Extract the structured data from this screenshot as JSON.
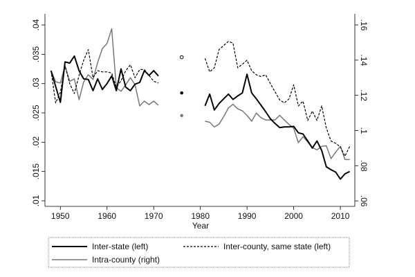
{
  "chart_data": {
    "type": "line",
    "xlabel": "Year",
    "ylabel_left": "",
    "ylabel_right": "",
    "xlim": [
      1946.7,
      2013.1
    ],
    "ylim_left": [
      0.00905,
      0.0419
    ],
    "ylim_right": [
      0.0569,
      0.1663
    ],
    "x_ticks": [
      1950,
      1960,
      1970,
      1980,
      1990,
      2000,
      2010
    ],
    "y_ticks_left": [
      ".01",
      ".015",
      ".02",
      ".025",
      ".03",
      ".035",
      ".04"
    ],
    "y_ticks_left_values": [
      0.01,
      0.015,
      0.02,
      0.025,
      0.03,
      0.035,
      0.04
    ],
    "y_ticks_right": [
      ".06",
      ".08",
      ".1",
      ".12",
      ".14",
      ".16"
    ],
    "y_ticks_right_values": [
      0.06,
      0.08,
      0.1,
      0.12,
      0.14,
      0.16
    ],
    "grid": false,
    "legend_placement": "bottom",
    "series": [
      {
        "name": "Inter-state (left)",
        "axis": "left",
        "style": "solid",
        "color": "#000000",
        "segments": [
          {
            "x": [
              1948,
              1949,
              1950,
              1951,
              1952,
              1953,
              1954,
              1955,
              1956,
              1957,
              1958,
              1959,
              1960,
              1961,
              1962,
              1963,
              1964,
              1965,
              1966,
              1967,
              1968,
              1969,
              1970,
              1971
            ],
            "y": [
              0.0322,
              0.0295,
              0.0268,
              0.0337,
              0.0335,
              0.0347,
              0.0322,
              0.0308,
              0.0307,
              0.0288,
              0.0308,
              0.029,
              0.03,
              0.0313,
              0.0288,
              0.0325,
              0.0294,
              0.0288,
              0.0299,
              0.0302,
              0.0322,
              0.0314,
              0.0322,
              0.0313
            ]
          },
          {
            "x": [
              1981,
              1982,
              1983,
              1984,
              1985,
              1986,
              1987,
              1988,
              1989,
              1990,
              1991,
              1992,
              1993,
              1994,
              1995,
              1996,
              1997,
              1998,
              1999,
              2000,
              2001,
              2002,
              2003,
              2004,
              2005,
              2006,
              2007,
              2008,
              2009,
              2010,
              2011,
              2012
            ],
            "y": [
              0.0262,
              0.0282,
              0.0255,
              0.0266,
              0.0274,
              0.0282,
              0.0273,
              0.0279,
              0.0284,
              0.0316,
              0.0284,
              0.0274,
              0.0263,
              0.0252,
              0.024,
              0.0232,
              0.0225,
              0.0226,
              0.0226,
              0.0227,
              0.0216,
              0.0214,
              0.0202,
              0.019,
              0.0202,
              0.0186,
              0.0158,
              0.0153,
              0.0149,
              0.0137,
              0.0146,
              0.015
            ]
          }
        ],
        "point": {
          "x": 1976,
          "y": 0.0284
        }
      },
      {
        "name": "Inter-county, same state (left)",
        "axis": "left",
        "style": "dashed",
        "color": "#000000",
        "segments": [
          {
            "x": [
              1948,
              1949,
              1950,
              1951,
              1952,
              1953,
              1954,
              1955,
              1956,
              1957,
              1958,
              1959,
              1960,
              1961,
              1962,
              1963,
              1964,
              1965,
              1966,
              1967,
              1968,
              1969,
              1970,
              1971
            ],
            "y": [
              0.0322,
              0.0267,
              0.0285,
              0.033,
              0.03,
              0.0283,
              0.0314,
              0.034,
              0.0358,
              0.031,
              0.0322,
              0.032,
              0.032,
              0.0318,
              0.0294,
              0.0305,
              0.0322,
              0.0332,
              0.031,
              0.0324,
              0.0324,
              0.0314,
              0.0304,
              0.0301
            ]
          },
          {
            "x": [
              1981,
              1982,
              1983,
              1984,
              1985,
              1986,
              1987,
              1988,
              1989,
              1990,
              1991,
              1992,
              1993,
              1994,
              1995,
              1996,
              1997,
              1998,
              1999,
              2000,
              2001,
              2002,
              2003,
              2004,
              2005,
              2006,
              2007,
              2008,
              2009,
              2010,
              2011,
              2012
            ],
            "y": [
              0.0343,
              0.032,
              0.0327,
              0.0358,
              0.0365,
              0.0372,
              0.0369,
              0.0327,
              0.0333,
              0.034,
              0.0322,
              0.0315,
              0.0312,
              0.0315,
              0.03,
              0.0286,
              0.0272,
              0.0267,
              0.0274,
              0.0298,
              0.0262,
              0.027,
              0.0237,
              0.0253,
              0.0237,
              0.0262,
              0.0224,
              0.0202,
              0.0198,
              0.0192,
              0.0176,
              0.0193
            ]
          }
        ],
        "point": {
          "x": 1976,
          "y": 0.0345
        }
      },
      {
        "name": "Intra-county (right)",
        "axis": "right",
        "style": "solid",
        "color": "#777777",
        "segments": [
          {
            "x": [
              1948,
              1949,
              1950,
              1951,
              1952,
              1953,
              1954,
              1955,
              1956,
              1957,
              1958,
              1959,
              1960,
              1961,
              1962,
              1963,
              1964,
              1965,
              1966,
              1967,
              1968,
              1969,
              1970,
              1971
            ],
            "y": [
              0.134,
              0.1277,
              0.127,
              0.1368,
              0.128,
              0.1293,
              0.1175,
              0.1277,
              0.1317,
              0.129,
              0.1387,
              0.1466,
              0.1494,
              0.1578,
              0.1243,
              0.1223,
              0.126,
              0.13,
              0.126,
              0.114,
              0.1167,
              0.1147,
              0.1167,
              0.1144
            ]
          },
          {
            "x": [
              1981,
              1982,
              1983,
              1984,
              1985,
              1986,
              1987,
              1988,
              1989,
              1990,
              1991,
              1992,
              1993,
              1994,
              1995,
              1996,
              1997,
              1998,
              1999,
              2000,
              2001,
              2002,
              2003,
              2004,
              2005,
              2006,
              2007,
              2008,
              2009,
              2010,
              2011,
              2012
            ],
            "y": [
              0.1053,
              0.1047,
              0.102,
              0.1036,
              0.1079,
              0.1128,
              0.1149,
              0.1123,
              0.1112,
              0.1086,
              0.1053,
              0.1099,
              0.1073,
              0.106,
              0.106,
              0.106,
              0.1086,
              0.106,
              0.1034,
              0.1013,
              0.0931,
              0.0965,
              0.0935,
              0.0903,
              0.089,
              0.091,
              0.0913,
              0.084,
              0.0877,
              0.091,
              0.0835,
              0.0835
            ]
          }
        ],
        "point": {
          "x": 1976,
          "y": 0.1085
        }
      }
    ]
  }
}
